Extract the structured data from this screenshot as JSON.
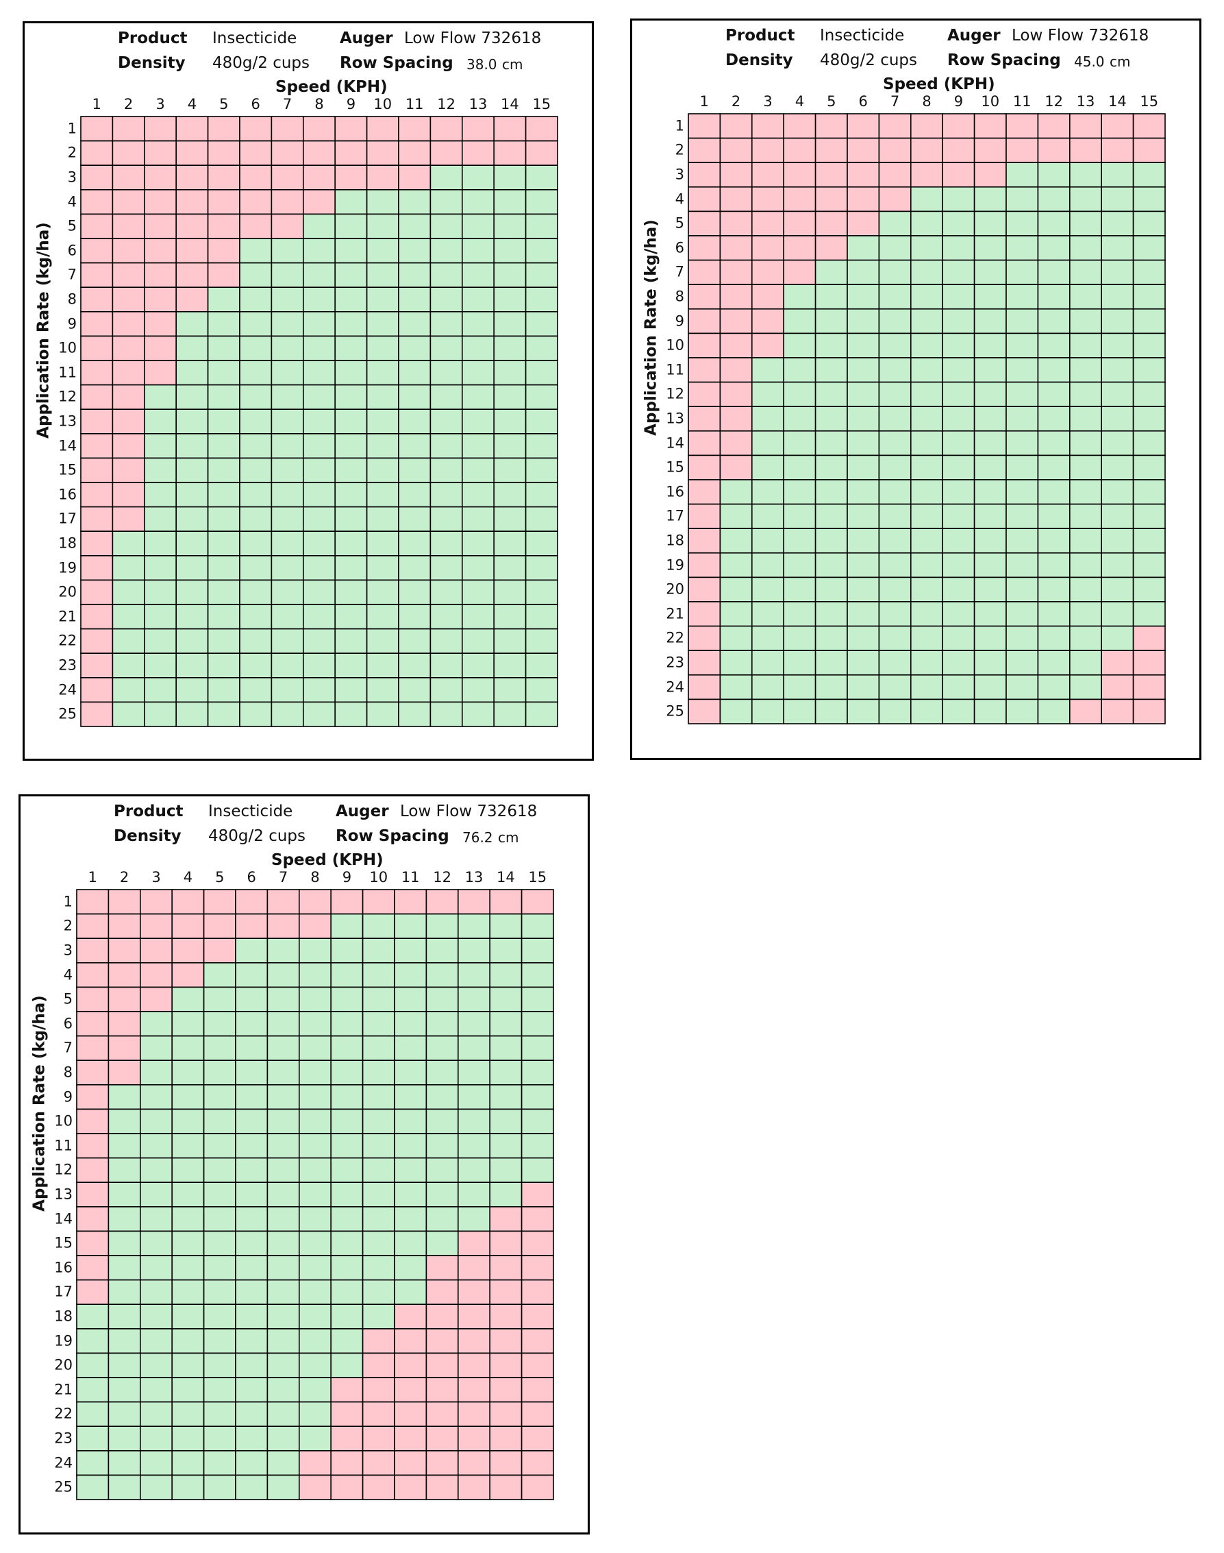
{
  "colors": {
    "unsuitable": "#ffc7ce",
    "suitable": "#c6efce",
    "gridline": "#000000"
  },
  "chart_data": [
    {
      "type": "heatmap",
      "title": "",
      "header": {
        "product_label": "Product",
        "product_value": "Insecticide",
        "auger_label": "Auger",
        "auger_value": "Low Flow 732618",
        "density_label": "Density",
        "density_value": "480g/2 cups",
        "row_spacing_label": "Row Spacing",
        "row_spacing_value": "38.0",
        "row_spacing_unit": "cm"
      },
      "xlabel": "Speed (KPH)",
      "ylabel": "Application Rate (kg/ha)",
      "x": [
        1,
        2,
        3,
        4,
        5,
        6,
        7,
        8,
        9,
        10,
        11,
        12,
        13,
        14,
        15
      ],
      "y": [
        1,
        2,
        3,
        4,
        5,
        6,
        7,
        8,
        9,
        10,
        11,
        12,
        13,
        14,
        15,
        16,
        17,
        18,
        19,
        20,
        21,
        22,
        23,
        24,
        25
      ],
      "cell_values": "1 = suitable (green), 0 = not suitable (pink); rows = application rate, columns = speed",
      "rows": [
        [
          0,
          0,
          0,
          0,
          0,
          0,
          0,
          0,
          0,
          0,
          0,
          0,
          0,
          0,
          0
        ],
        [
          0,
          0,
          0,
          0,
          0,
          0,
          0,
          0,
          0,
          0,
          0,
          0,
          0,
          0,
          0
        ],
        [
          0,
          0,
          0,
          0,
          0,
          0,
          0,
          0,
          0,
          0,
          0,
          1,
          1,
          1,
          1
        ],
        [
          0,
          0,
          0,
          0,
          0,
          0,
          0,
          0,
          1,
          1,
          1,
          1,
          1,
          1,
          1
        ],
        [
          0,
          0,
          0,
          0,
          0,
          0,
          0,
          1,
          1,
          1,
          1,
          1,
          1,
          1,
          1
        ],
        [
          0,
          0,
          0,
          0,
          0,
          1,
          1,
          1,
          1,
          1,
          1,
          1,
          1,
          1,
          1
        ],
        [
          0,
          0,
          0,
          0,
          0,
          1,
          1,
          1,
          1,
          1,
          1,
          1,
          1,
          1,
          1
        ],
        [
          0,
          0,
          0,
          0,
          1,
          1,
          1,
          1,
          1,
          1,
          1,
          1,
          1,
          1,
          1
        ],
        [
          0,
          0,
          0,
          1,
          1,
          1,
          1,
          1,
          1,
          1,
          1,
          1,
          1,
          1,
          1
        ],
        [
          0,
          0,
          0,
          1,
          1,
          1,
          1,
          1,
          1,
          1,
          1,
          1,
          1,
          1,
          1
        ],
        [
          0,
          0,
          0,
          1,
          1,
          1,
          1,
          1,
          1,
          1,
          1,
          1,
          1,
          1,
          1
        ],
        [
          0,
          0,
          1,
          1,
          1,
          1,
          1,
          1,
          1,
          1,
          1,
          1,
          1,
          1,
          1
        ],
        [
          0,
          0,
          1,
          1,
          1,
          1,
          1,
          1,
          1,
          1,
          1,
          1,
          1,
          1,
          1
        ],
        [
          0,
          0,
          1,
          1,
          1,
          1,
          1,
          1,
          1,
          1,
          1,
          1,
          1,
          1,
          1
        ],
        [
          0,
          0,
          1,
          1,
          1,
          1,
          1,
          1,
          1,
          1,
          1,
          1,
          1,
          1,
          1
        ],
        [
          0,
          0,
          1,
          1,
          1,
          1,
          1,
          1,
          1,
          1,
          1,
          1,
          1,
          1,
          1
        ],
        [
          0,
          0,
          1,
          1,
          1,
          1,
          1,
          1,
          1,
          1,
          1,
          1,
          1,
          1,
          1
        ],
        [
          0,
          1,
          1,
          1,
          1,
          1,
          1,
          1,
          1,
          1,
          1,
          1,
          1,
          1,
          1
        ],
        [
          0,
          1,
          1,
          1,
          1,
          1,
          1,
          1,
          1,
          1,
          1,
          1,
          1,
          1,
          1
        ],
        [
          0,
          1,
          1,
          1,
          1,
          1,
          1,
          1,
          1,
          1,
          1,
          1,
          1,
          1,
          1
        ],
        [
          0,
          1,
          1,
          1,
          1,
          1,
          1,
          1,
          1,
          1,
          1,
          1,
          1,
          1,
          1
        ],
        [
          0,
          1,
          1,
          1,
          1,
          1,
          1,
          1,
          1,
          1,
          1,
          1,
          1,
          1,
          1
        ],
        [
          0,
          1,
          1,
          1,
          1,
          1,
          1,
          1,
          1,
          1,
          1,
          1,
          1,
          1,
          1
        ],
        [
          0,
          1,
          1,
          1,
          1,
          1,
          1,
          1,
          1,
          1,
          1,
          1,
          1,
          1,
          1
        ],
        [
          0,
          1,
          1,
          1,
          1,
          1,
          1,
          1,
          1,
          1,
          1,
          1,
          1,
          1,
          1
        ]
      ]
    },
    {
      "type": "heatmap",
      "title": "",
      "header": {
        "product_label": "Product",
        "product_value": "Insecticide",
        "auger_label": "Auger",
        "auger_value": "Low Flow 732618",
        "density_label": "Density",
        "density_value": "480g/2 cups",
        "row_spacing_label": "Row Spacing",
        "row_spacing_value": "45.0",
        "row_spacing_unit": "cm"
      },
      "xlabel": "Speed (KPH)",
      "ylabel": "Application Rate (kg/ha)",
      "x": [
        1,
        2,
        3,
        4,
        5,
        6,
        7,
        8,
        9,
        10,
        11,
        12,
        13,
        14,
        15
      ],
      "y": [
        1,
        2,
        3,
        4,
        5,
        6,
        7,
        8,
        9,
        10,
        11,
        12,
        13,
        14,
        15,
        16,
        17,
        18,
        19,
        20,
        21,
        22,
        23,
        24,
        25
      ],
      "cell_values": "1 = suitable (green), 0 = not suitable (pink); rows = application rate, columns = speed",
      "rows": [
        [
          0,
          0,
          0,
          0,
          0,
          0,
          0,
          0,
          0,
          0,
          0,
          0,
          0,
          0,
          0
        ],
        [
          0,
          0,
          0,
          0,
          0,
          0,
          0,
          0,
          0,
          0,
          0,
          0,
          0,
          0,
          0
        ],
        [
          0,
          0,
          0,
          0,
          0,
          0,
          0,
          0,
          0,
          0,
          1,
          1,
          1,
          1,
          1
        ],
        [
          0,
          0,
          0,
          0,
          0,
          0,
          0,
          1,
          1,
          1,
          1,
          1,
          1,
          1,
          1
        ],
        [
          0,
          0,
          0,
          0,
          0,
          0,
          1,
          1,
          1,
          1,
          1,
          1,
          1,
          1,
          1
        ],
        [
          0,
          0,
          0,
          0,
          0,
          1,
          1,
          1,
          1,
          1,
          1,
          1,
          1,
          1,
          1
        ],
        [
          0,
          0,
          0,
          0,
          1,
          1,
          1,
          1,
          1,
          1,
          1,
          1,
          1,
          1,
          1
        ],
        [
          0,
          0,
          0,
          1,
          1,
          1,
          1,
          1,
          1,
          1,
          1,
          1,
          1,
          1,
          1
        ],
        [
          0,
          0,
          0,
          1,
          1,
          1,
          1,
          1,
          1,
          1,
          1,
          1,
          1,
          1,
          1
        ],
        [
          0,
          0,
          0,
          1,
          1,
          1,
          1,
          1,
          1,
          1,
          1,
          1,
          1,
          1,
          1
        ],
        [
          0,
          0,
          1,
          1,
          1,
          1,
          1,
          1,
          1,
          1,
          1,
          1,
          1,
          1,
          1
        ],
        [
          0,
          0,
          1,
          1,
          1,
          1,
          1,
          1,
          1,
          1,
          1,
          1,
          1,
          1,
          1
        ],
        [
          0,
          0,
          1,
          1,
          1,
          1,
          1,
          1,
          1,
          1,
          1,
          1,
          1,
          1,
          1
        ],
        [
          0,
          0,
          1,
          1,
          1,
          1,
          1,
          1,
          1,
          1,
          1,
          1,
          1,
          1,
          1
        ],
        [
          0,
          0,
          1,
          1,
          1,
          1,
          1,
          1,
          1,
          1,
          1,
          1,
          1,
          1,
          1
        ],
        [
          0,
          1,
          1,
          1,
          1,
          1,
          1,
          1,
          1,
          1,
          1,
          1,
          1,
          1,
          1
        ],
        [
          0,
          1,
          1,
          1,
          1,
          1,
          1,
          1,
          1,
          1,
          1,
          1,
          1,
          1,
          1
        ],
        [
          0,
          1,
          1,
          1,
          1,
          1,
          1,
          1,
          1,
          1,
          1,
          1,
          1,
          1,
          1
        ],
        [
          0,
          1,
          1,
          1,
          1,
          1,
          1,
          1,
          1,
          1,
          1,
          1,
          1,
          1,
          1
        ],
        [
          0,
          1,
          1,
          1,
          1,
          1,
          1,
          1,
          1,
          1,
          1,
          1,
          1,
          1,
          1
        ],
        [
          0,
          1,
          1,
          1,
          1,
          1,
          1,
          1,
          1,
          1,
          1,
          1,
          1,
          1,
          1
        ],
        [
          0,
          1,
          1,
          1,
          1,
          1,
          1,
          1,
          1,
          1,
          1,
          1,
          1,
          1,
          0
        ],
        [
          0,
          1,
          1,
          1,
          1,
          1,
          1,
          1,
          1,
          1,
          1,
          1,
          1,
          0,
          0
        ],
        [
          0,
          1,
          1,
          1,
          1,
          1,
          1,
          1,
          1,
          1,
          1,
          1,
          1,
          0,
          0
        ],
        [
          0,
          1,
          1,
          1,
          1,
          1,
          1,
          1,
          1,
          1,
          1,
          1,
          0,
          0,
          0
        ]
      ]
    },
    {
      "type": "heatmap",
      "title": "",
      "header": {
        "product_label": "Product",
        "product_value": "Insecticide",
        "auger_label": "Auger",
        "auger_value": "Low Flow 732618",
        "density_label": "Density",
        "density_value": "480g/2 cups",
        "row_spacing_label": "Row Spacing",
        "row_spacing_value": "76.2",
        "row_spacing_unit": "cm"
      },
      "xlabel": "Speed (KPH)",
      "ylabel": "Application Rate (kg/ha)",
      "x": [
        1,
        2,
        3,
        4,
        5,
        6,
        7,
        8,
        9,
        10,
        11,
        12,
        13,
        14,
        15
      ],
      "y": [
        1,
        2,
        3,
        4,
        5,
        6,
        7,
        8,
        9,
        10,
        11,
        12,
        13,
        14,
        15,
        16,
        17,
        18,
        19,
        20,
        21,
        22,
        23,
        24,
        25
      ],
      "cell_values": "1 = suitable (green), 0 = not suitable (pink); rows = application rate, columns = speed",
      "rows": [
        [
          0,
          0,
          0,
          0,
          0,
          0,
          0,
          0,
          0,
          0,
          0,
          0,
          0,
          0,
          0
        ],
        [
          0,
          0,
          0,
          0,
          0,
          0,
          0,
          0,
          1,
          1,
          1,
          1,
          1,
          1,
          1
        ],
        [
          0,
          0,
          0,
          0,
          0,
          1,
          1,
          1,
          1,
          1,
          1,
          1,
          1,
          1,
          1
        ],
        [
          0,
          0,
          0,
          0,
          1,
          1,
          1,
          1,
          1,
          1,
          1,
          1,
          1,
          1,
          1
        ],
        [
          0,
          0,
          0,
          1,
          1,
          1,
          1,
          1,
          1,
          1,
          1,
          1,
          1,
          1,
          1
        ],
        [
          0,
          0,
          1,
          1,
          1,
          1,
          1,
          1,
          1,
          1,
          1,
          1,
          1,
          1,
          1
        ],
        [
          0,
          0,
          1,
          1,
          1,
          1,
          1,
          1,
          1,
          1,
          1,
          1,
          1,
          1,
          1
        ],
        [
          0,
          0,
          1,
          1,
          1,
          1,
          1,
          1,
          1,
          1,
          1,
          1,
          1,
          1,
          1
        ],
        [
          0,
          1,
          1,
          1,
          1,
          1,
          1,
          1,
          1,
          1,
          1,
          1,
          1,
          1,
          1
        ],
        [
          0,
          1,
          1,
          1,
          1,
          1,
          1,
          1,
          1,
          1,
          1,
          1,
          1,
          1,
          1
        ],
        [
          0,
          1,
          1,
          1,
          1,
          1,
          1,
          1,
          1,
          1,
          1,
          1,
          1,
          1,
          1
        ],
        [
          0,
          1,
          1,
          1,
          1,
          1,
          1,
          1,
          1,
          1,
          1,
          1,
          1,
          1,
          1
        ],
        [
          0,
          1,
          1,
          1,
          1,
          1,
          1,
          1,
          1,
          1,
          1,
          1,
          1,
          1,
          0
        ],
        [
          0,
          1,
          1,
          1,
          1,
          1,
          1,
          1,
          1,
          1,
          1,
          1,
          1,
          0,
          0
        ],
        [
          0,
          1,
          1,
          1,
          1,
          1,
          1,
          1,
          1,
          1,
          1,
          1,
          0,
          0,
          0
        ],
        [
          0,
          1,
          1,
          1,
          1,
          1,
          1,
          1,
          1,
          1,
          1,
          0,
          0,
          0,
          0
        ],
        [
          0,
          1,
          1,
          1,
          1,
          1,
          1,
          1,
          1,
          1,
          1,
          0,
          0,
          0,
          0
        ],
        [
          1,
          1,
          1,
          1,
          1,
          1,
          1,
          1,
          1,
          1,
          0,
          0,
          0,
          0,
          0
        ],
        [
          1,
          1,
          1,
          1,
          1,
          1,
          1,
          1,
          1,
          0,
          0,
          0,
          0,
          0,
          0
        ],
        [
          1,
          1,
          1,
          1,
          1,
          1,
          1,
          1,
          1,
          0,
          0,
          0,
          0,
          0,
          0
        ],
        [
          1,
          1,
          1,
          1,
          1,
          1,
          1,
          1,
          0,
          0,
          0,
          0,
          0,
          0,
          0
        ],
        [
          1,
          1,
          1,
          1,
          1,
          1,
          1,
          1,
          0,
          0,
          0,
          0,
          0,
          0,
          0
        ],
        [
          1,
          1,
          1,
          1,
          1,
          1,
          1,
          1,
          0,
          0,
          0,
          0,
          0,
          0,
          0
        ],
        [
          1,
          1,
          1,
          1,
          1,
          1,
          1,
          0,
          0,
          0,
          0,
          0,
          0,
          0,
          0
        ],
        [
          1,
          1,
          1,
          1,
          1,
          1,
          1,
          0,
          0,
          0,
          0,
          0,
          0,
          0,
          0
        ]
      ]
    }
  ]
}
